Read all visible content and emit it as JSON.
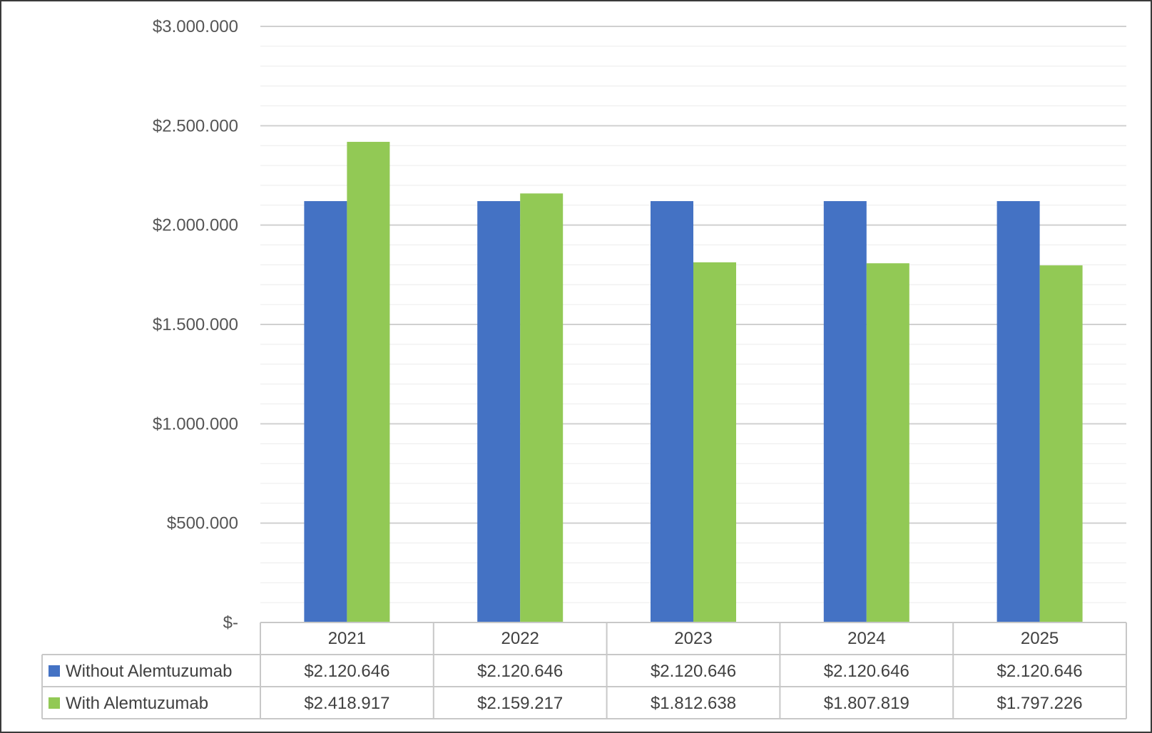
{
  "chart_data": {
    "type": "bar",
    "title": "",
    "xlabel": "",
    "ylabel": "",
    "categories": [
      "2021",
      "2022",
      "2023",
      "2024",
      "2025"
    ],
    "series": [
      {
        "name": "Without Alemtuzumab",
        "color": "#4472C4",
        "values": [
          2120646,
          2120646,
          2120646,
          2120646,
          2120646
        ],
        "labels": [
          "$2.120.646",
          "$2.120.646",
          "$2.120.646",
          "$2.120.646",
          "$2.120.646"
        ]
      },
      {
        "name": "With Alemtuzumab",
        "color": "#92C955",
        "values": [
          2418917,
          2159217,
          1812638,
          1807819,
          1797226
        ],
        "labels": [
          "$2.418.917",
          "$2.159.217",
          "$1.812.638",
          "$1.807.819",
          "$1.797.226"
        ]
      }
    ],
    "ylim": [
      0,
      3000000
    ],
    "y_ticks": [
      {
        "value": 3000000,
        "label": "$3.000.000"
      },
      {
        "value": 2500000,
        "label": "$2.500.000"
      },
      {
        "value": 2000000,
        "label": "$2.000.000"
      },
      {
        "value": 1500000,
        "label": "$1.500.000"
      },
      {
        "value": 1000000,
        "label": "$1.000.000"
      },
      {
        "value": 500000,
        "label": "$500.000"
      },
      {
        "value": 0,
        "label": "$-"
      }
    ],
    "minor_step": 100000,
    "grid": true,
    "legend": "data-table-bottom"
  }
}
